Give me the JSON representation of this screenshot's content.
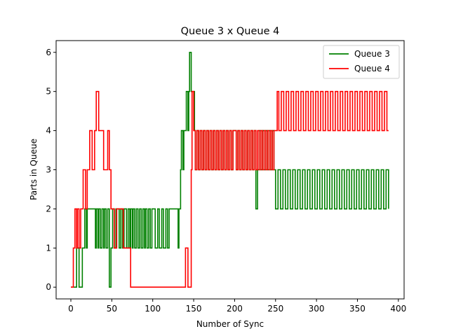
{
  "chart_data": {
    "type": "line",
    "step": true,
    "title": "Queue 3 x Queue 4",
    "xlabel": "Number of Sync",
    "ylabel": "Parts in Queue",
    "xlim": [
      -18,
      407
    ],
    "ylim": [
      -0.3,
      6.3
    ],
    "xticks": [
      0,
      50,
      100,
      150,
      200,
      250,
      300,
      350,
      400
    ],
    "yticks": [
      0,
      1,
      2,
      3,
      4,
      5,
      6
    ],
    "grid": false,
    "legend": "top-right",
    "colors": {
      "Queue 3": "#008000",
      "Queue 4": "#ff0000"
    },
    "series": [
      {
        "name": "Queue 3",
        "x": [
          0,
          4,
          7,
          10,
          11,
          14,
          17,
          19,
          20,
          23,
          30,
          31,
          33,
          34,
          36,
          38,
          40,
          41,
          43,
          45,
          47,
          49,
          51,
          53,
          55,
          57,
          59,
          61,
          63,
          65,
          68,
          70,
          72,
          73,
          75,
          76,
          78,
          80,
          82,
          84,
          86,
          88,
          90,
          91,
          93,
          95,
          97,
          99,
          101,
          103,
          106,
          108,
          111,
          113,
          116,
          118,
          120,
          122,
          125,
          128,
          131,
          132,
          134,
          135,
          137,
          138,
          141,
          143,
          144,
          145,
          147,
          149,
          151,
          152,
          154,
          156,
          158,
          160,
          162,
          164,
          166,
          168,
          170,
          172,
          174,
          176,
          178,
          180,
          182,
          184,
          186,
          188,
          190,
          192,
          194,
          196,
          198,
          200,
          202,
          204,
          206,
          208,
          210,
          212,
          214,
          216,
          218,
          220,
          222,
          224,
          226,
          228,
          230,
          232,
          234,
          236,
          238,
          240,
          242,
          244,
          246,
          248,
          250,
          253,
          256,
          259,
          262,
          265,
          268,
          271,
          274,
          277,
          280,
          283,
          286,
          289,
          292,
          295,
          298,
          301,
          304,
          307,
          310,
          313,
          316,
          319,
          322,
          325,
          328,
          331,
          334,
          337,
          340,
          343,
          346,
          349,
          352,
          355,
          358,
          361,
          364,
          367,
          370,
          373,
          376,
          379,
          382,
          385,
          388
        ],
        "values": [
          0,
          0,
          1,
          0,
          0,
          1,
          2,
          1,
          2,
          2,
          1,
          2,
          1,
          2,
          1,
          2,
          1,
          2,
          1,
          2,
          0,
          1,
          2,
          1,
          2,
          2,
          1,
          2,
          1,
          2,
          1,
          2,
          1,
          2,
          1,
          2,
          1,
          2,
          1,
          2,
          1,
          2,
          1,
          2,
          1,
          2,
          1,
          2,
          2,
          1,
          2,
          1,
          2,
          1,
          2,
          1,
          2,
          2,
          2,
          2,
          1,
          2,
          3,
          4,
          3,
          4,
          5,
          4,
          5,
          6,
          5,
          5,
          4,
          3,
          4,
          3,
          4,
          3,
          4,
          3,
          4,
          3,
          4,
          3,
          4,
          3,
          4,
          3,
          4,
          3,
          4,
          3,
          4,
          3,
          4,
          3,
          4,
          4,
          3,
          4,
          3,
          4,
          3,
          4,
          3,
          4,
          3,
          4,
          3,
          4,
          2,
          3,
          4,
          3,
          4,
          3,
          4,
          3,
          4,
          3,
          4,
          3,
          2,
          3,
          2,
          3,
          2,
          3,
          2,
          3,
          2,
          3,
          2,
          3,
          2,
          3,
          2,
          3,
          2,
          3,
          2,
          3,
          2,
          3,
          2,
          3,
          2,
          3,
          2,
          3,
          2,
          3,
          2,
          3,
          2,
          3,
          2,
          3,
          2,
          3,
          2,
          3,
          2,
          3,
          2,
          3,
          2,
          3,
          2
        ]
      },
      {
        "name": "Queue 4",
        "x": [
          0,
          3,
          5,
          7,
          8,
          10,
          12,
          15,
          18,
          20,
          23,
          26,
          29,
          31,
          34,
          37,
          40,
          42,
          45,
          47,
          49,
          51,
          53,
          56,
          60,
          64,
          70,
          73,
          100,
          130,
          140,
          143,
          147,
          148,
          150,
          152,
          154,
          156,
          158,
          160,
          162,
          164,
          166,
          168,
          170,
          172,
          174,
          176,
          178,
          180,
          182,
          184,
          186,
          188,
          190,
          192,
          194,
          196,
          198,
          200,
          202,
          204,
          206,
          208,
          210,
          212,
          214,
          216,
          218,
          220,
          222,
          224,
          226,
          228,
          230,
          232,
          234,
          236,
          238,
          240,
          242,
          244,
          246,
          248,
          250,
          252,
          254,
          257,
          260,
          263,
          266,
          269,
          272,
          275,
          278,
          281,
          284,
          287,
          290,
          293,
          296,
          299,
          302,
          305,
          308,
          311,
          314,
          317,
          320,
          323,
          326,
          329,
          332,
          335,
          338,
          341,
          344,
          347,
          350,
          353,
          356,
          359,
          362,
          365,
          368,
          371,
          374,
          377,
          380,
          383,
          386,
          388
        ],
        "values": [
          0,
          1,
          2,
          1,
          2,
          1,
          2,
          3,
          2,
          3,
          4,
          3,
          4,
          5,
          4,
          4,
          3,
          3,
          4,
          3,
          2,
          2,
          1,
          2,
          2,
          1,
          1,
          0,
          0,
          0,
          1,
          0,
          3,
          5,
          4,
          3,
          4,
          3,
          4,
          3,
          4,
          3,
          4,
          3,
          4,
          3,
          4,
          3,
          4,
          3,
          4,
          3,
          4,
          3,
          4,
          3,
          4,
          3,
          4,
          4,
          3,
          4,
          3,
          4,
          3,
          4,
          3,
          4,
          3,
          4,
          3,
          4,
          3,
          4,
          3,
          4,
          3,
          4,
          3,
          4,
          3,
          4,
          3,
          4,
          4,
          5,
          4,
          5,
          4,
          5,
          4,
          5,
          4,
          5,
          4,
          5,
          4,
          5,
          4,
          5,
          4,
          5,
          4,
          5,
          4,
          5,
          4,
          5,
          4,
          5,
          4,
          5,
          4,
          5,
          4,
          5,
          4,
          5,
          4,
          5,
          4,
          5,
          4,
          5,
          4,
          5,
          4,
          5,
          4,
          5,
          4,
          4
        ]
      }
    ]
  }
}
